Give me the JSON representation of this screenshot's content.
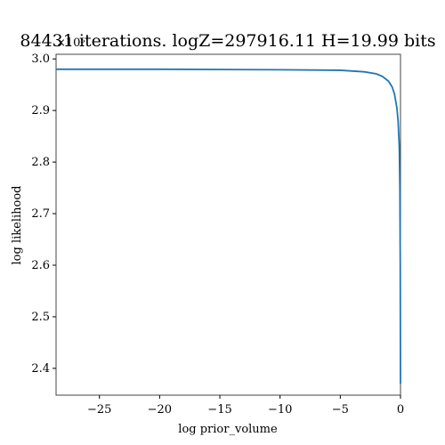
{
  "chart_data": {
    "type": "line",
    "title": "84431 iterations. logZ=297916.11 H=19.99 bits",
    "xlabel": "log prior_volume",
    "ylabel": "log likelihood",
    "y_offset_label": "×10⁵",
    "x": [
      -28.6,
      -20,
      -10,
      -5,
      -3,
      -2,
      -1.5,
      -1,
      -0.7,
      -0.5,
      -0.3,
      -0.2,
      -0.1,
      -0.05,
      -0.02,
      0
    ],
    "series": [
      {
        "color": "#1f77b4",
        "values": [
          2.98,
          2.98,
          2.979,
          2.978,
          2.975,
          2.971,
          2.966,
          2.957,
          2.946,
          2.932,
          2.905,
          2.88,
          2.83,
          2.75,
          2.6,
          2.37
        ]
      }
    ],
    "xlim": [
      -28.6,
      0
    ],
    "ylim": [
      2.348,
      3.009
    ],
    "xticks": [
      {
        "value": -25,
        "label": "−25"
      },
      {
        "value": -20,
        "label": "−20"
      },
      {
        "value": -15,
        "label": "−15"
      },
      {
        "value": -10,
        "label": "−10"
      },
      {
        "value": -5,
        "label": "−5"
      },
      0
    ],
    "yticks": [
      2.4,
      2.5,
      2.6,
      2.7,
      2.8,
      2.9,
      {
        "value": 3.0,
        "label": "3.0"
      }
    ]
  }
}
